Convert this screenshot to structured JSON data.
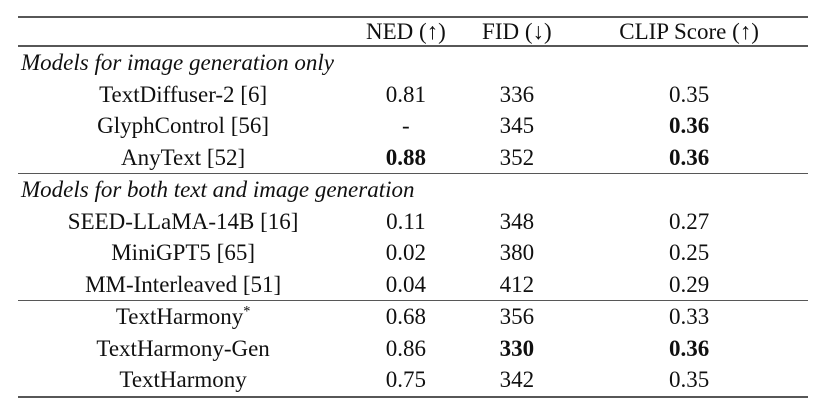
{
  "page": {
    "background": "#ffffff",
    "text_color": "#101010",
    "rule_color": "#575757"
  },
  "table": {
    "columns": [
      "",
      "NED (↑)",
      "FID (↓)",
      "CLIP Score (↑)"
    ],
    "sections": [
      {
        "header": "Models for image generation only",
        "rows": [
          {
            "model": "TextDiffuser-2 [6]",
            "ned": "0.81",
            "fid": "336",
            "clip": "0.35",
            "bold": []
          },
          {
            "model": "GlyphControl [56]",
            "ned": "-",
            "fid": "345",
            "clip": "0.36",
            "bold": [
              "clip"
            ]
          },
          {
            "model": "AnyText [52]",
            "ned": "0.88",
            "fid": "352",
            "clip": "0.36",
            "bold": [
              "ned",
              "clip"
            ]
          }
        ]
      },
      {
        "header": "Models for both text and image generation",
        "rows": [
          {
            "model": "SEED-LLaMA-14B [16]",
            "ned": "0.11",
            "fid": "348",
            "clip": "0.27",
            "bold": []
          },
          {
            "model": "MiniGPT5 [65]",
            "ned": "0.02",
            "fid": "380",
            "clip": "0.25",
            "bold": []
          },
          {
            "model": "MM-Interleaved [51]",
            "ned": "0.04",
            "fid": "412",
            "clip": "0.29",
            "bold": []
          }
        ]
      },
      {
        "rows": [
          {
            "model": "TextHarmony",
            "model_sup": "*",
            "ned": "0.68",
            "fid": "356",
            "clip": "0.33",
            "bold": []
          },
          {
            "model": "TextHarmony-Gen",
            "ned": "0.86",
            "fid": "330",
            "clip": "0.36",
            "bold": [
              "fid",
              "clip"
            ]
          },
          {
            "model": "TextHarmony",
            "ned": "0.75",
            "fid": "342",
            "clip": "0.35",
            "bold": []
          }
        ]
      }
    ]
  }
}
